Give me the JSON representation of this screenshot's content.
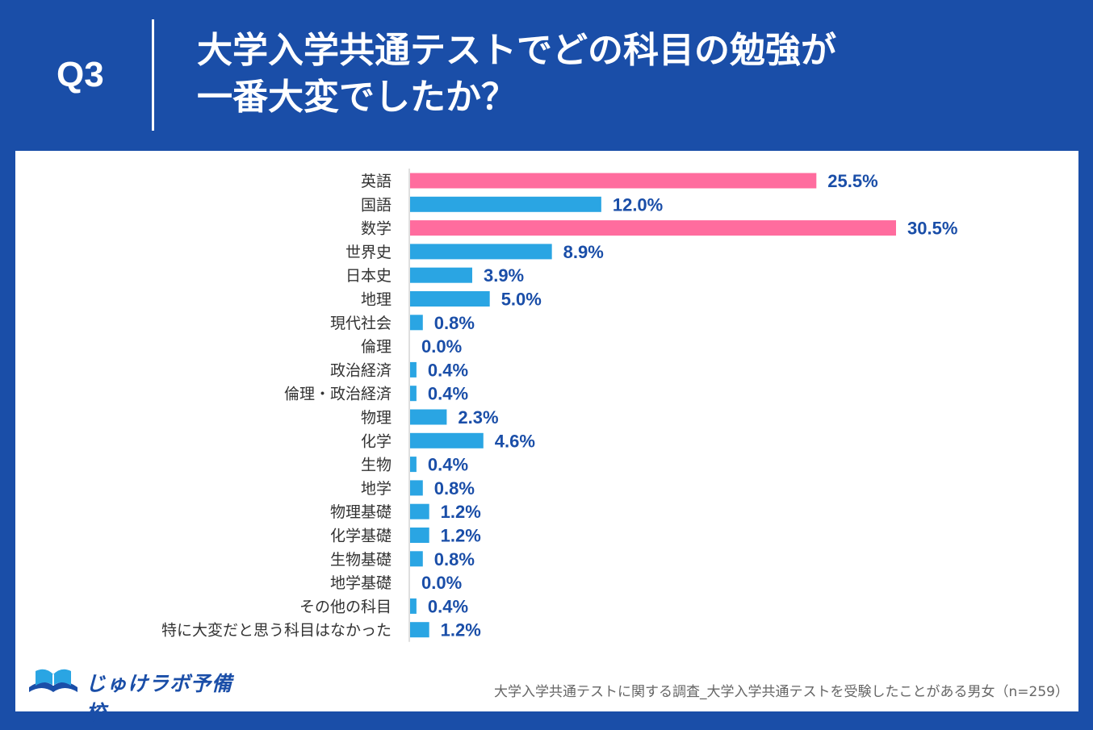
{
  "header": {
    "question_number": "Q3",
    "title_line1": "大学入学共通テストでどの科目の勉強が",
    "title_line2": "一番大変でしたか？"
  },
  "colors": {
    "background": "#1a4ea8",
    "bar_highlight": "#ff6c9e",
    "bar_default": "#2aa5e3",
    "value_text": "#1a4ea8"
  },
  "chart_data": {
    "type": "bar",
    "orientation": "horizontal",
    "title": "大学入学共通テストでどの科目の勉強が一番大変でしたか？",
    "categories": [
      "英語",
      "国語",
      "数学",
      "世界史",
      "日本史",
      "地理",
      "現代社会",
      "倫理",
      "政治経済",
      "倫理・政治経済",
      "物理",
      "化学",
      "生物",
      "地学",
      "物理基礎",
      "化学基礎",
      "生物基礎",
      "地学基礎",
      "その他の科目",
      "特に大変だと思う科目はなかった"
    ],
    "values": [
      25.5,
      12.0,
      30.5,
      8.9,
      3.9,
      5.0,
      0.8,
      0.0,
      0.4,
      0.4,
      2.3,
      4.6,
      0.4,
      0.8,
      1.2,
      1.2,
      0.8,
      0.0,
      0.4,
      1.2
    ],
    "value_labels": [
      "25.5%",
      "12.0%",
      "30.5%",
      "8.9%",
      "3.9%",
      "5.0%",
      "0.8%",
      "0.0%",
      "0.4%",
      "0.4%",
      "2.3%",
      "4.6%",
      "0.4%",
      "0.8%",
      "1.2%",
      "1.2%",
      "0.8%",
      "0.0%",
      "0.4%",
      "1.2%"
    ],
    "highlight": [
      true,
      false,
      true,
      false,
      false,
      false,
      false,
      false,
      false,
      false,
      false,
      false,
      false,
      false,
      false,
      false,
      false,
      false,
      false,
      false
    ],
    "unit": "%",
    "xlim": [
      0,
      30.5
    ]
  },
  "footer": {
    "logo_text": "じゅけラボ予備校",
    "source": "大学入学共通テストに関する調査_大学入学共通テストを受験したことがある男女（n=259）"
  }
}
